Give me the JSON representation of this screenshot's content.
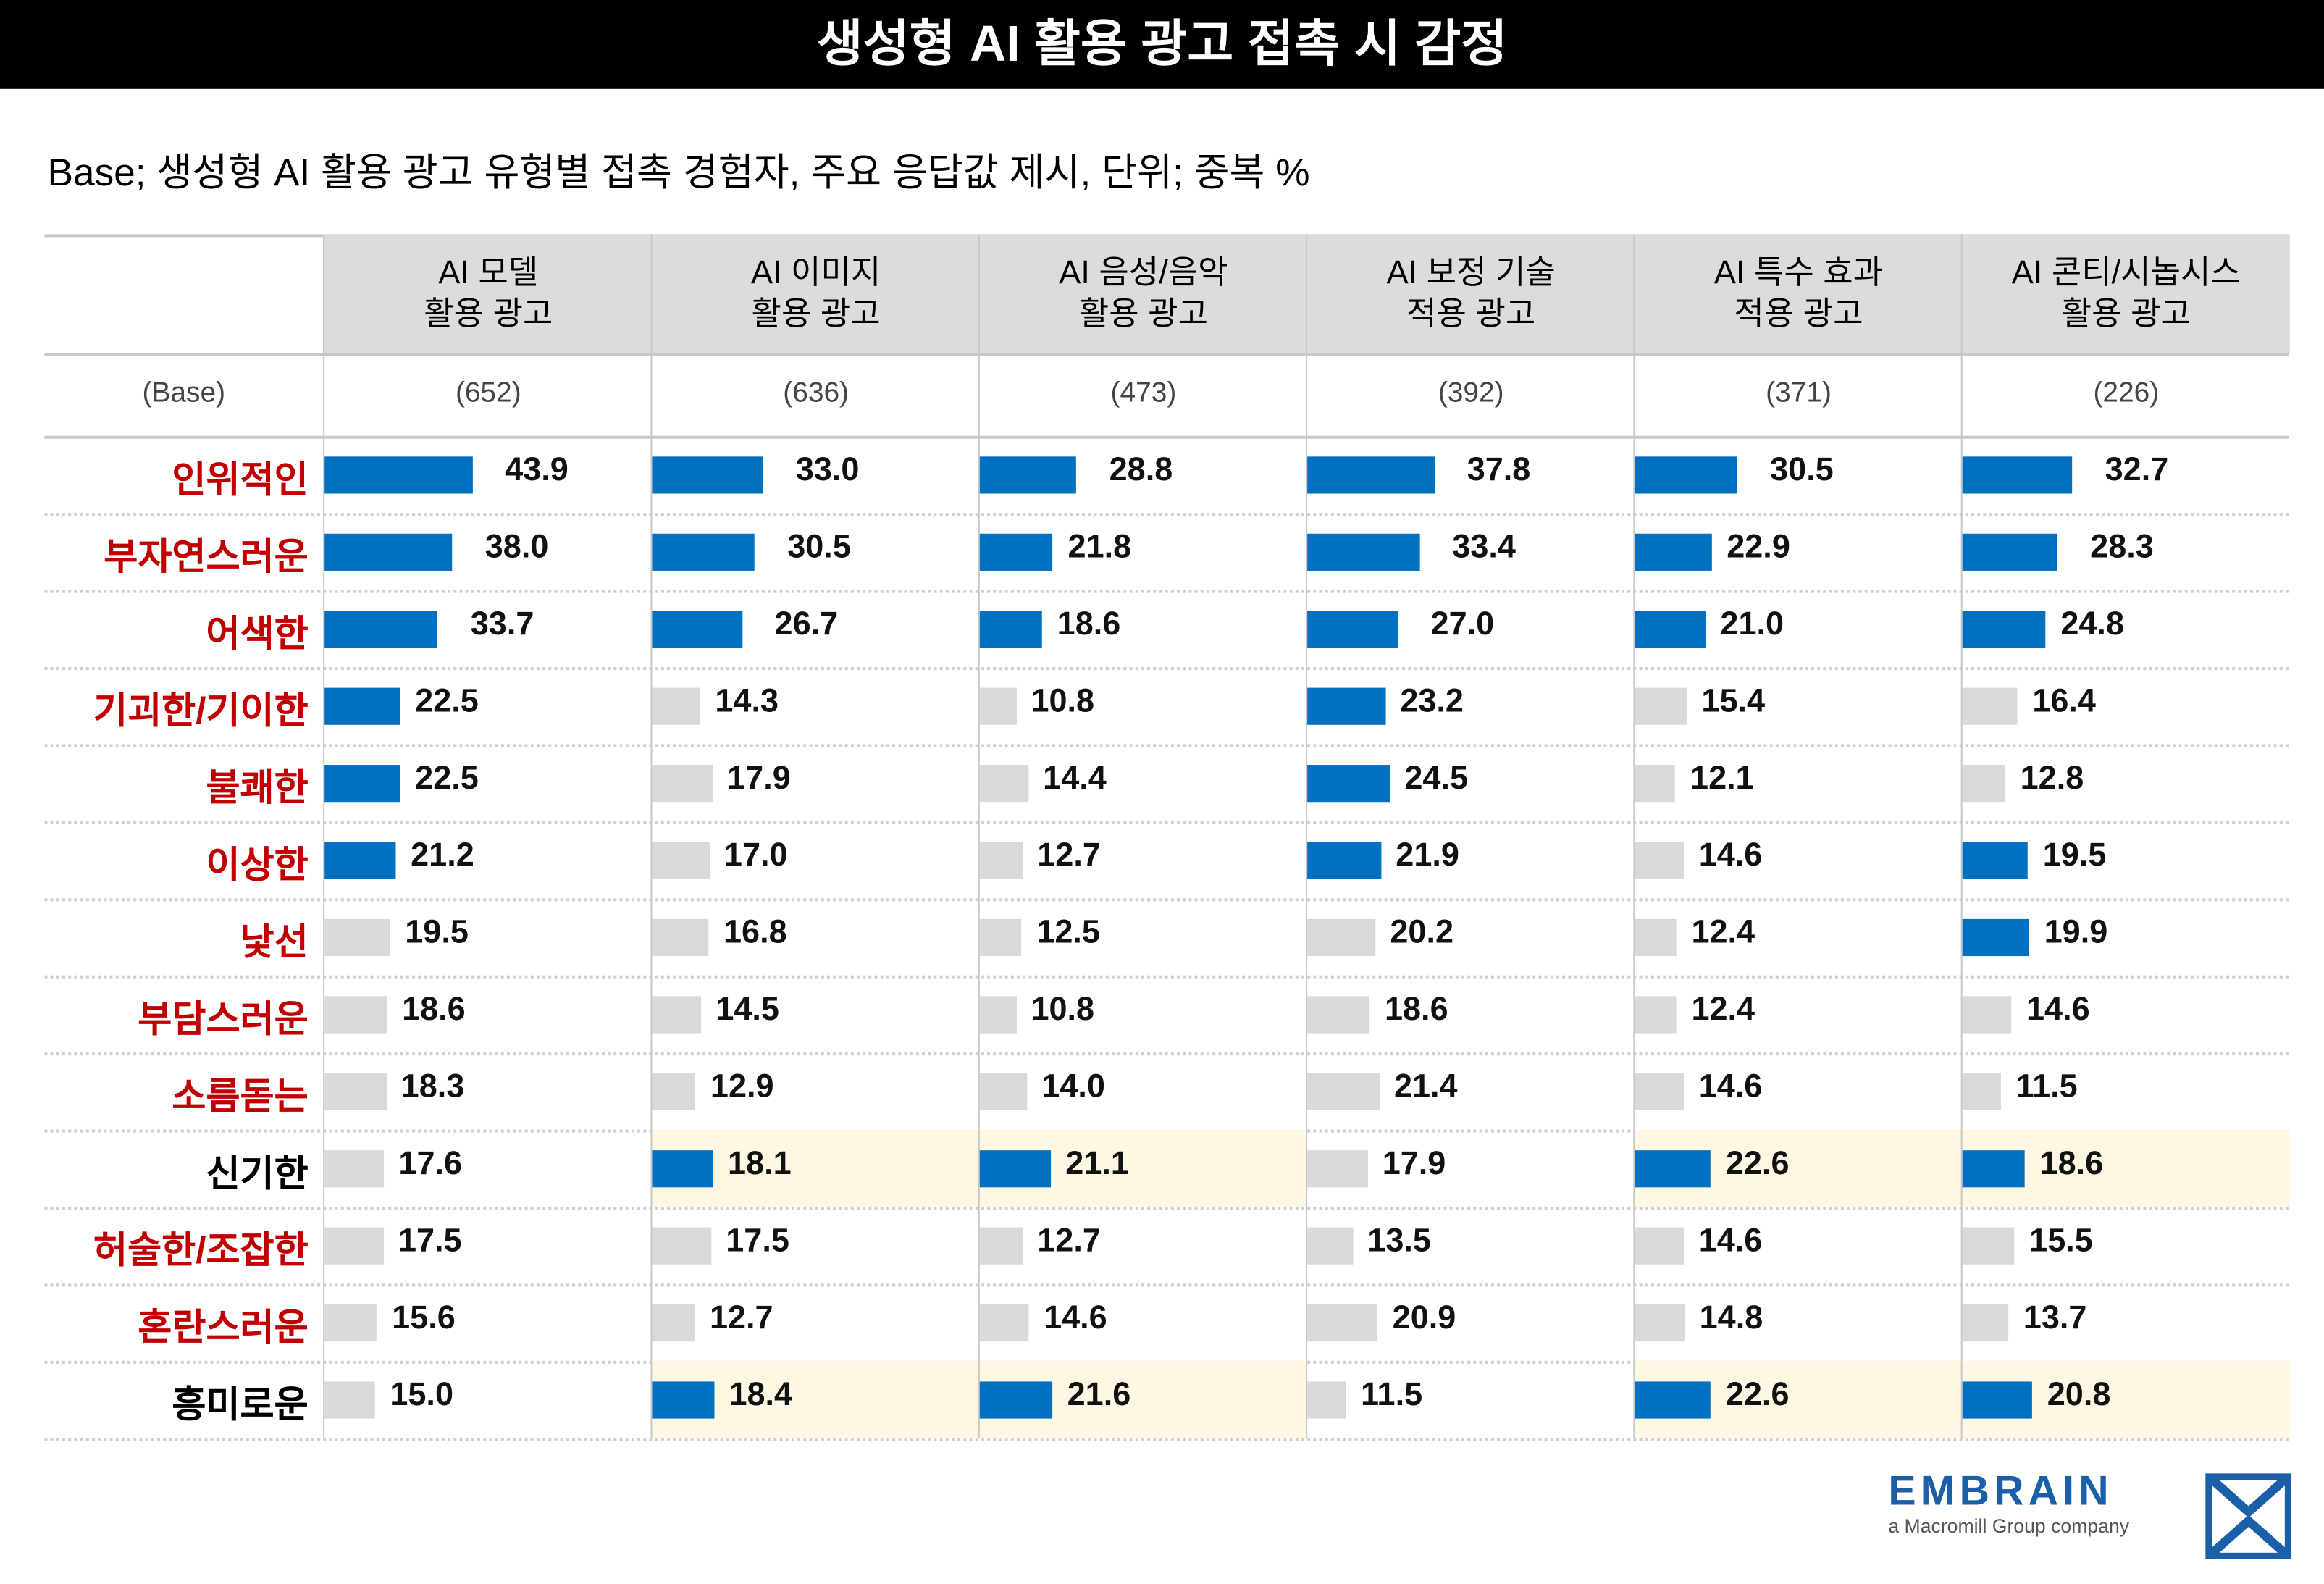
{
  "title": "생성형 AI 활용 광고 접촉 시 감정",
  "subtitle": "Base; 생성형 AI 활용 광고 유형별 접촉 경험자, 주요 응답값 제시, 단위; 중복 %",
  "colors": {
    "highlight": "#0070c0",
    "normal": "#d9d9d9",
    "negative_label": "#c00000",
    "positive_label": "#000000",
    "highlight_bg": "#fdf7e3"
  },
  "logo": {
    "name": "EMBRAIN",
    "tagline": "a Macromill Group company"
  },
  "chart_data": {
    "type": "table",
    "title": "생성형 AI 활용 광고 접촉 시 감정",
    "base_label": "(Base)",
    "columns": [
      {
        "label": "AI 모델\n활용 광고",
        "base": "(652)"
      },
      {
        "label": "AI 이미지\n활용 광고",
        "base": "(636)"
      },
      {
        "label": "AI 음성/음악\n활용 광고",
        "base": "(473)"
      },
      {
        "label": "AI 보정 기술\n적용 광고",
        "base": "(392)"
      },
      {
        "label": "AI 특수 효과\n적용 광고",
        "base": "(371)"
      },
      {
        "label": "AI 콘티/시놉시스\n활용 광고",
        "base": "(226)"
      }
    ],
    "rows": [
      {
        "label": "인위적인",
        "negative": true,
        "values": [
          43.9,
          33.0,
          28.8,
          37.8,
          30.5,
          32.7
        ],
        "highlight": [
          1,
          1,
          1,
          1,
          1,
          1
        ]
      },
      {
        "label": "부자연스러운",
        "negative": true,
        "values": [
          38.0,
          30.5,
          21.8,
          33.4,
          22.9,
          28.3
        ],
        "highlight": [
          1,
          1,
          1,
          1,
          1,
          1
        ]
      },
      {
        "label": "어색한",
        "negative": true,
        "values": [
          33.7,
          26.7,
          18.6,
          27.0,
          21.0,
          24.8
        ],
        "highlight": [
          1,
          1,
          1,
          1,
          1,
          1
        ]
      },
      {
        "label": "기괴한/기이한",
        "negative": true,
        "values": [
          22.5,
          14.3,
          10.8,
          23.2,
          15.4,
          16.4
        ],
        "highlight": [
          1,
          0,
          0,
          1,
          0,
          0
        ]
      },
      {
        "label": "불쾌한",
        "negative": true,
        "values": [
          22.5,
          17.9,
          14.4,
          24.5,
          12.1,
          12.8
        ],
        "highlight": [
          1,
          0,
          0,
          1,
          0,
          0
        ]
      },
      {
        "label": "이상한",
        "negative": true,
        "values": [
          21.2,
          17.0,
          12.7,
          21.9,
          14.6,
          19.5
        ],
        "highlight": [
          1,
          0,
          0,
          1,
          0,
          1
        ]
      },
      {
        "label": "낯선",
        "negative": true,
        "values": [
          19.5,
          16.8,
          12.5,
          20.2,
          12.4,
          19.9
        ],
        "highlight": [
          0,
          0,
          0,
          0,
          0,
          1
        ]
      },
      {
        "label": "부담스러운",
        "negative": true,
        "values": [
          18.6,
          14.5,
          10.8,
          18.6,
          12.4,
          14.6
        ],
        "highlight": [
          0,
          0,
          0,
          0,
          0,
          0
        ]
      },
      {
        "label": "소름돋는",
        "negative": true,
        "values": [
          18.3,
          12.9,
          14.0,
          21.4,
          14.6,
          11.5
        ],
        "highlight": [
          0,
          0,
          0,
          0,
          0,
          0
        ]
      },
      {
        "label": "신기한",
        "negative": false,
        "values": [
          17.6,
          18.1,
          21.1,
          17.9,
          22.6,
          18.6
        ],
        "highlight": [
          0,
          1,
          1,
          0,
          1,
          1
        ]
      },
      {
        "label": "허술한/조잡한",
        "negative": true,
        "values": [
          17.5,
          17.5,
          12.7,
          13.5,
          14.6,
          15.5
        ],
        "highlight": [
          0,
          0,
          0,
          0,
          0,
          0
        ]
      },
      {
        "label": "혼란스러운",
        "negative": true,
        "values": [
          15.6,
          12.7,
          14.6,
          20.9,
          14.8,
          13.7
        ],
        "highlight": [
          0,
          0,
          0,
          0,
          0,
          0
        ]
      },
      {
        "label": "흥미로운",
        "negative": false,
        "values": [
          15.0,
          18.4,
          21.6,
          11.5,
          22.6,
          20.8
        ],
        "highlight": [
          0,
          1,
          1,
          0,
          1,
          1
        ]
      }
    ]
  }
}
